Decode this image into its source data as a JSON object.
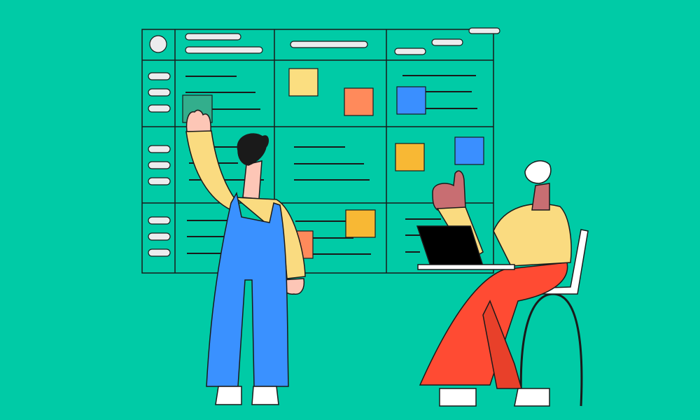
{
  "colors": {
    "background": "#00CBA6",
    "outline": "#1a1a1a",
    "pill": "#ECECEE",
    "note_yellow": "#FBDE80",
    "note_orange": "#FF8A5B",
    "note_blue": "#3A8FFF",
    "note_amber": "#F8B834",
    "note_green": "#33AE8C",
    "shirt": "#FADB80",
    "overalls": "#3A91FF",
    "skin_light": "#FDC6B6",
    "skin_dark": "#C86E72",
    "pants": "#FF4B33",
    "laptop": "#000000"
  }
}
